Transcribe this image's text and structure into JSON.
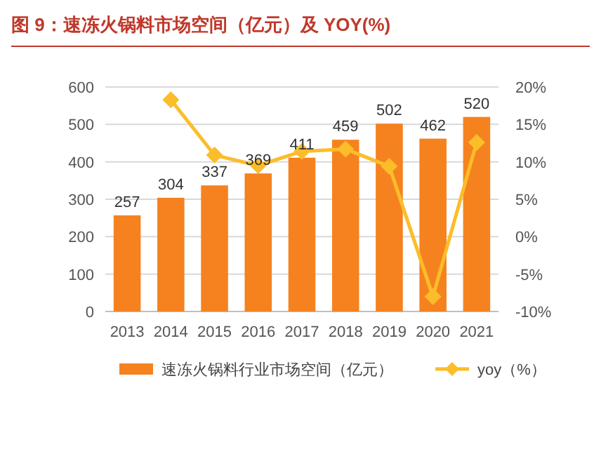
{
  "chart_data": {
    "type": "bar",
    "title": "图 9：速冻火锅料市场空间（亿元）及 YOY(%)",
    "categories": [
      "2013",
      "2014",
      "2015",
      "2016",
      "2017",
      "2018",
      "2019",
      "2020",
      "2021"
    ],
    "series": [
      {
        "name": "速冻火锅料行业市场空间（亿元）",
        "color": "#f5821f",
        "values": [
          257,
          304,
          337,
          369,
          411,
          459,
          502,
          462,
          520
        ],
        "value_labels": [
          "257",
          "304",
          "337",
          "369",
          "411",
          "459",
          "502",
          "462",
          "520"
        ]
      },
      {
        "name": "yoy（%）",
        "type": "line",
        "axis": "y2",
        "color": "#fbbd2a",
        "marker": "diamond",
        "values": [
          null,
          18.3,
          10.9,
          9.5,
          11.4,
          11.7,
          9.4,
          -8.0,
          12.6
        ]
      }
    ],
    "ylim": [
      0,
      600
    ],
    "yticks": [
      0,
      100,
      200,
      300,
      400,
      500,
      600
    ],
    "y2lim": [
      -10,
      20
    ],
    "y2ticks": [
      {
        "value": -10,
        "label": "-10%"
      },
      {
        "value": -5,
        "label": "-5%"
      },
      {
        "value": 0,
        "label": "0%"
      },
      {
        "value": 5,
        "label": "5%"
      },
      {
        "value": 10,
        "label": "10%"
      },
      {
        "value": 15,
        "label": "15%"
      },
      {
        "value": 20,
        "label": "20%"
      }
    ],
    "grid": "y",
    "legend": "bottom"
  }
}
